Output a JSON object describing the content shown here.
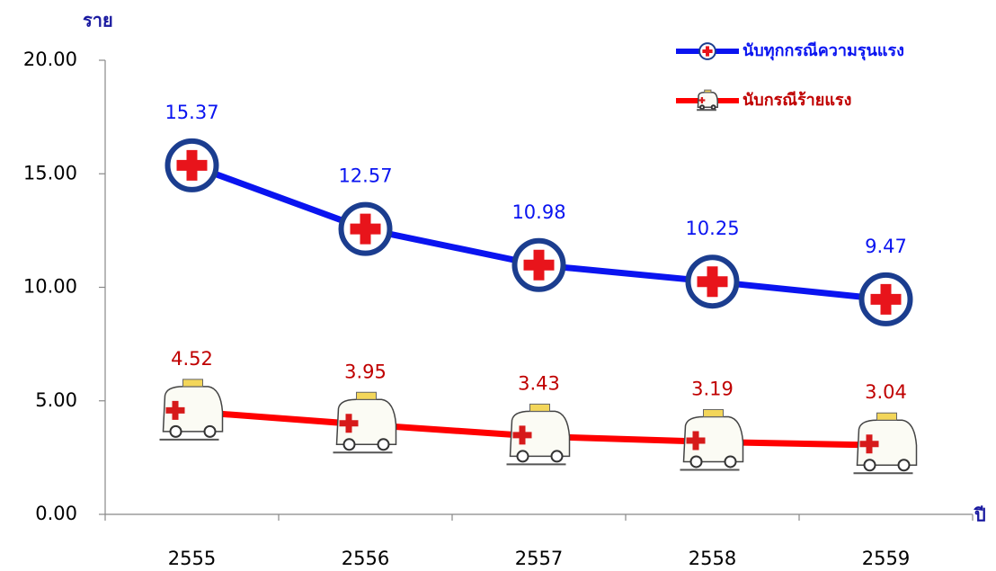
{
  "chart_data": {
    "type": "line",
    "y_label": "ราย",
    "x_label": "ปี",
    "categories": [
      "2555",
      "2556",
      "2557",
      "2558",
      "2559"
    ],
    "series": [
      {
        "name": "นับทุกกรณีความรุนแรง",
        "color": "#0a14f0",
        "label_color": "#0a14f0",
        "marker": "cross",
        "values": [
          15.37,
          12.57,
          10.98,
          10.25,
          9.47
        ]
      },
      {
        "name": "นับกรณีร้ายแรง",
        "color": "#ff0000",
        "label_color": "#c00000",
        "marker": "ambulance",
        "values": [
          4.52,
          3.95,
          3.43,
          3.19,
          3.04
        ]
      }
    ],
    "ylim": [
      0,
      20
    ],
    "yticks": [
      {
        "value": 0,
        "label": "0.00"
      },
      {
        "value": 5,
        "label": "5.00"
      },
      {
        "value": 10,
        "label": "10.00"
      },
      {
        "value": 15,
        "label": "15.00"
      },
      {
        "value": 20,
        "label": "20.00"
      }
    ],
    "grid": false,
    "legend": "top-right"
  }
}
